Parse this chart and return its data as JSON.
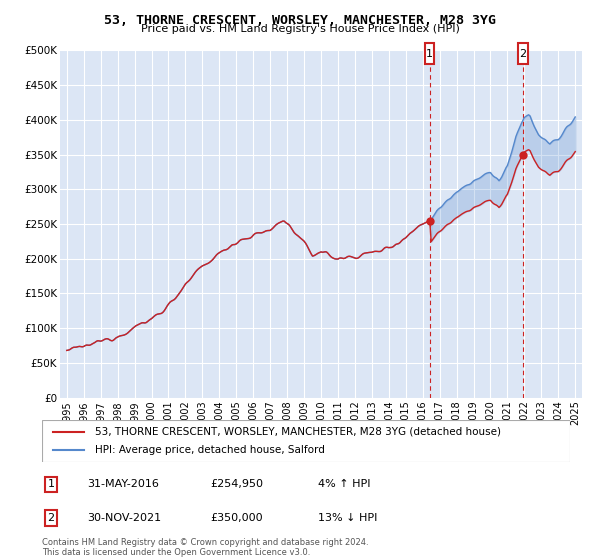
{
  "title": "53, THORNE CRESCENT, WORSLEY, MANCHESTER, M28 3YG",
  "subtitle": "Price paid vs. HM Land Registry's House Price Index (HPI)",
  "background_color": "#ffffff",
  "plot_bg_color": "#dce6f5",
  "grid_color": "#ffffff",
  "hpi_color": "#5588cc",
  "price_color": "#cc2222",
  "fill_color": "#c8d8f0",
  "ann1_x": 2016.42,
  "ann2_x": 2021.92,
  "ann1_price": 254950,
  "ann2_price": 350000,
  "legend_line1": "53, THORNE CRESCENT, WORSLEY, MANCHESTER, M28 3YG (detached house)",
  "legend_line2": "HPI: Average price, detached house, Salford",
  "table_row1_num": "1",
  "table_row1_date": "31-MAY-2016",
  "table_row1_price": "£254,950",
  "table_row1_pct": "4% ↑ HPI",
  "table_row2_num": "2",
  "table_row2_date": "30-NOV-2021",
  "table_row2_price": "£350,000",
  "table_row2_pct": "13% ↓ HPI",
  "footnote": "Contains HM Land Registry data © Crown copyright and database right 2024.\nThis data is licensed under the Open Government Licence v3.0.",
  "ylim": [
    0,
    500000
  ],
  "xlim_start": 1994.6,
  "xlim_end": 2025.4,
  "yticks": [
    0,
    50000,
    100000,
    150000,
    200000,
    250000,
    300000,
    350000,
    400000,
    450000,
    500000
  ],
  "ytick_labels": [
    "£0",
    "£50K",
    "£100K",
    "£150K",
    "£200K",
    "£250K",
    "£300K",
    "£350K",
    "£400K",
    "£450K",
    "£500K"
  ],
  "xticks": [
    1995,
    1996,
    1997,
    1998,
    1999,
    2000,
    2001,
    2002,
    2003,
    2004,
    2005,
    2006,
    2007,
    2008,
    2009,
    2010,
    2011,
    2012,
    2013,
    2014,
    2015,
    2016,
    2017,
    2018,
    2019,
    2020,
    2021,
    2022,
    2023,
    2024,
    2025
  ]
}
